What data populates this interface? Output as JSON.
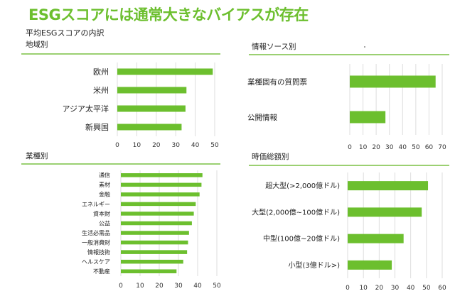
{
  "title": "ESGスコアには通常大きなバイアスが存在",
  "subtitle": "平均ESGスコアの内訳",
  "colors": {
    "bar": "#6cbf2e",
    "rule": "#7ac143",
    "grid": "#dddddd",
    "title": "#6cbf2e"
  },
  "chart_data": [
    {
      "type": "bar",
      "orientation": "horizontal",
      "title": "地域別",
      "categories": [
        "欧州",
        "米州",
        "アジア太平洋",
        "新興国"
      ],
      "values": [
        49,
        35.5,
        35,
        33
      ],
      "xlim": [
        0,
        50
      ],
      "xticks": [
        "0",
        "10",
        "20",
        "30",
        "40",
        "50"
      ],
      "grid": true
    },
    {
      "type": "bar",
      "orientation": "horizontal",
      "title": "情報ソース別",
      "categories": [
        "業種固有の質問票",
        "公開情報"
      ],
      "values": [
        65,
        27
      ],
      "xlim": [
        0,
        70
      ],
      "xticks": [
        "0",
        "10",
        "20",
        "30",
        "40",
        "50",
        "60",
        "70"
      ],
      "grid": true
    },
    {
      "type": "bar",
      "orientation": "horizontal",
      "title": "業種別",
      "categories": [
        "通信",
        "素材",
        "金融",
        "エネルギー",
        "資本財",
        "公益",
        "生活必需品",
        "一般消費財",
        "情報技術",
        "ヘルスケア",
        "不動産"
      ],
      "values": [
        42.5,
        42,
        41,
        39,
        38,
        37,
        35.5,
        35,
        34.5,
        32.5,
        29
      ],
      "xlim": [
        0,
        50
      ],
      "xticks": [
        "0",
        "10",
        "20",
        "30",
        "40",
        "50"
      ],
      "grid": true
    },
    {
      "type": "bar",
      "orientation": "horizontal",
      "title": "時価総額別",
      "categories": [
        "超大型(>2,000億ドル)",
        "大型(2,000億~100億ドル)",
        "中型(100億~20億ドル)",
        "小型(3億ドル>)"
      ],
      "values": [
        51,
        47,
        35.5,
        28
      ],
      "xlim": [
        0,
        60
      ],
      "xticks": [
        "0",
        "10",
        "20",
        "30",
        "40",
        "50",
        "60"
      ],
      "grid": true
    }
  ]
}
